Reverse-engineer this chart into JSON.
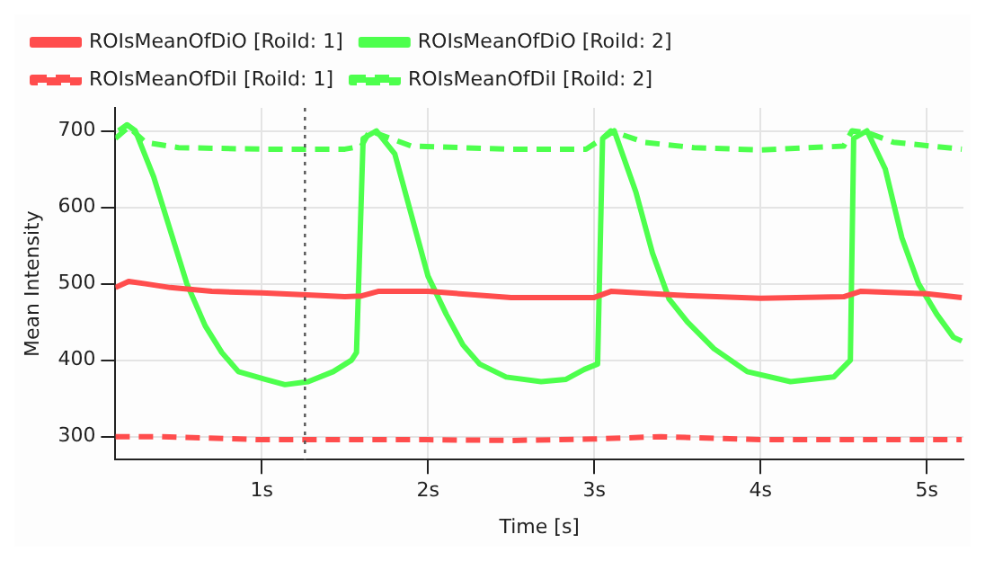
{
  "chart_data": {
    "type": "line",
    "xlabel": "Time [s]",
    "ylabel": "Mean Intensity",
    "xlim": [
      0.12,
      5.22
    ],
    "ylim": [
      270,
      730
    ],
    "xticks": [
      {
        "value": 1,
        "label": "1s"
      },
      {
        "value": 2,
        "label": "2s"
      },
      {
        "value": 3,
        "label": "3s"
      },
      {
        "value": 4,
        "label": "4s"
      },
      {
        "value": 5,
        "label": "5s"
      }
    ],
    "yticks": [
      300,
      400,
      500,
      600,
      700
    ],
    "grid": true,
    "legend": "top left",
    "marker": "none",
    "ref_lines": [
      {
        "axis": "x",
        "value": 1.26,
        "label": null,
        "color": "#555555",
        "line_style": "dotted"
      }
    ],
    "series": [
      {
        "name": "ROIsMeanOfDiO [RoiId: 1]",
        "color": "#ff4d4d",
        "line_style": "solid",
        "x": [
          0.12,
          0.2,
          0.3,
          0.45,
          0.7,
          1.0,
          1.3,
          1.5,
          1.6,
          1.7,
          2.0,
          2.5,
          3.0,
          3.1,
          3.5,
          4.0,
          4.5,
          4.6,
          5.0,
          5.21
        ],
        "values": [
          495,
          503,
          500,
          495,
          490,
          488,
          485,
          483,
          484,
          490,
          490,
          482,
          482,
          490,
          485,
          481,
          483,
          490,
          487,
          482
        ]
      },
      {
        "name": "ROIsMeanOfDiO [RoiId: 2]",
        "color": "#4dff4d",
        "line_style": "solid",
        "x": [
          0.14,
          0.19,
          0.24,
          0.35,
          0.45,
          0.55,
          0.66,
          0.76,
          0.86,
          1.02,
          1.14,
          1.28,
          1.43,
          1.54,
          1.57,
          1.61,
          1.69,
          1.8,
          1.9,
          2.0,
          2.11,
          2.21,
          2.31,
          2.47,
          2.68,
          2.83,
          2.94,
          3.02,
          3.05,
          3.12,
          3.25,
          3.35,
          3.45,
          3.56,
          3.72,
          3.92,
          4.18,
          4.44,
          4.54,
          4.56,
          4.64,
          4.75,
          4.85,
          4.95,
          5.06,
          5.16,
          5.21
        ],
        "values": [
          700,
          708,
          700,
          640,
          570,
          500,
          445,
          410,
          385,
          375,
          368,
          372,
          385,
          400,
          410,
          690,
          700,
          670,
          590,
          510,
          460,
          420,
          395,
          378,
          372,
          375,
          388,
          395,
          690,
          700,
          620,
          540,
          480,
          450,
          415,
          385,
          372,
          378,
          400,
          690,
          700,
          650,
          560,
          500,
          460,
          430,
          425
        ]
      },
      {
        "name": "ROIsMeanOfDiI [RoiId: 1]",
        "color": "#ff4d4d",
        "line_style": "dashed",
        "x": [
          0.12,
          0.4,
          1.0,
          1.5,
          2.0,
          2.5,
          3.0,
          3.4,
          4.0,
          4.5,
          5.21
        ],
        "values": [
          300,
          300,
          296,
          296,
          296,
          295,
          297,
          300,
          296,
          296,
          296
        ]
      },
      {
        "name": "ROIsMeanOfDiI [RoiId: 2]",
        "color": "#4dff4d",
        "line_style": "dashed",
        "x": [
          0.12,
          0.2,
          0.3,
          0.5,
          1.0,
          1.5,
          1.6,
          1.65,
          1.75,
          1.9,
          2.5,
          2.95,
          3.05,
          3.1,
          3.3,
          3.6,
          4.0,
          4.5,
          4.55,
          4.65,
          4.8,
          5.21
        ],
        "values": [
          690,
          705,
          685,
          678,
          676,
          676,
          680,
          700,
          692,
          680,
          676,
          676,
          690,
          700,
          685,
          678,
          675,
          680,
          700,
          697,
          685,
          676
        ]
      }
    ]
  }
}
